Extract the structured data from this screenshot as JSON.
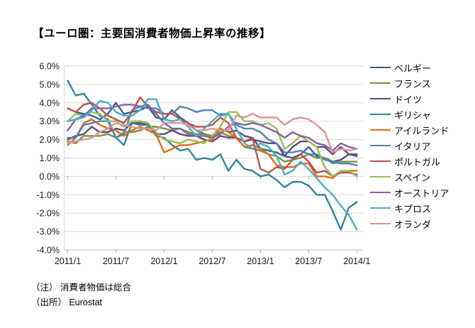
{
  "title": "【ユーロ圏：主要国消費者物価上昇率の推移】",
  "notes": [
    "（注） 消費者物価は総合",
    "（出所） Eurostat"
  ],
  "chart_data": {
    "type": "line",
    "title": "【ユーロ圏：主要国消費者物価上昇率の推移】",
    "xlabel": "",
    "ylabel": "",
    "ylim": [
      -4,
      6
    ],
    "grid": "horizontal",
    "legend_position": "right",
    "categories": [
      "2011/1",
      "2011/2",
      "2011/3",
      "2011/4",
      "2011/5",
      "2011/6",
      "2011/7",
      "2011/8",
      "2011/9",
      "2011/10",
      "2011/11",
      "2011/12",
      "2012/1",
      "2012/2",
      "2012/3",
      "2012/4",
      "2012/5",
      "2012/6",
      "2012/7",
      "2012/8",
      "2012/9",
      "2012/10",
      "2012/11",
      "2012/12",
      "2013/1",
      "2013/2",
      "2013/3",
      "2013/4",
      "2013/5",
      "2013/6",
      "2013/7",
      "2013/8",
      "2013/9",
      "2013/10",
      "2013/11",
      "2013/12",
      "2014/1"
    ],
    "x_tick_labels": [
      "2011/1",
      "2011/7",
      "2012/1",
      "2012/7",
      "2013/1",
      "2013/7",
      "2014/1"
    ],
    "x_tick_months": [
      0,
      6,
      12,
      18,
      24,
      30,
      36
    ],
    "y_ticks": [
      {
        "value": 6,
        "label": "6.0%"
      },
      {
        "value": 5,
        "label": "5.0%"
      },
      {
        "value": 4,
        "label": "4.0%"
      },
      {
        "value": 3,
        "label": "3.0%"
      },
      {
        "value": 2,
        "label": "2.0%"
      },
      {
        "value": 1,
        "label": "1.0%"
      },
      {
        "value": 0,
        "label": "0.0%"
      },
      {
        "value": -1,
        "label": "-1.0%"
      },
      {
        "value": -2,
        "label": "-2.0%"
      },
      {
        "value": -3,
        "label": "-3.0%"
      },
      {
        "value": -4,
        "label": "-4.0%"
      }
    ],
    "colors": {
      "grid": "#D9D9D9",
      "axis": "#BFBFBF",
      "tick": "#A6A6A6",
      "label": "#1a1a1a"
    },
    "series": [
      {
        "key": "belgium",
        "name": "ベルギー",
        "color": "#365F91",
        "values": [
          3.7,
          3.5,
          3.4,
          3.3,
          3.1,
          3.4,
          4.0,
          3.4,
          3.5,
          3.6,
          3.8,
          3.2,
          3.1,
          3.6,
          3.2,
          2.9,
          2.5,
          2.3,
          2.2,
          2.6,
          2.4,
          2.5,
          2.2,
          2.1,
          1.5,
          1.4,
          1.3,
          1.1,
          1.0,
          1.2,
          1.6,
          1.1,
          1.0,
          0.8,
          0.9,
          1.2,
          1.1
        ]
      },
      {
        "key": "france",
        "name": "フランス",
        "color": "#77933C",
        "values": [
          1.9,
          1.8,
          2.2,
          2.2,
          2.2,
          2.3,
          2.1,
          2.4,
          2.4,
          2.5,
          2.7,
          2.7,
          2.6,
          2.5,
          2.6,
          2.4,
          2.3,
          2.3,
          2.2,
          2.4,
          2.2,
          2.1,
          1.6,
          1.5,
          1.4,
          1.2,
          1.1,
          0.8,
          0.9,
          1.0,
          1.2,
          1.0,
          1.0,
          0.7,
          0.8,
          0.8,
          0.8
        ]
      },
      {
        "key": "germany",
        "name": "ドイツ",
        "color": "#604A7B",
        "values": [
          2.0,
          2.2,
          2.3,
          2.7,
          2.4,
          2.4,
          2.6,
          2.5,
          2.9,
          2.9,
          2.8,
          2.3,
          2.3,
          2.5,
          2.3,
          2.2,
          2.2,
          2.0,
          1.9,
          2.2,
          2.1,
          2.1,
          1.9,
          2.0,
          1.9,
          1.8,
          1.8,
          1.1,
          1.6,
          1.9,
          1.9,
          1.6,
          1.6,
          1.2,
          1.6,
          1.2,
          1.2
        ]
      },
      {
        "key": "greece",
        "name": "ギリシャ",
        "color": "#31859C",
        "values": [
          5.2,
          4.4,
          4.5,
          3.9,
          3.3,
          3.1,
          2.1,
          1.7,
          2.9,
          2.8,
          2.8,
          2.2,
          2.1,
          1.7,
          1.4,
          1.5,
          0.9,
          1.0,
          0.9,
          1.2,
          0.3,
          0.9,
          0.4,
          0.3,
          0.0,
          0.1,
          -0.2,
          -0.6,
          -0.3,
          -0.3,
          -0.5,
          -1.0,
          -1.0,
          -1.9,
          -2.9,
          -1.7,
          -1.4
        ]
      },
      {
        "key": "ireland",
        "name": "アイルランド",
        "color": "#E36C09",
        "values": [
          1.7,
          2.1,
          2.9,
          3.1,
          2.8,
          2.6,
          2.5,
          2.2,
          2.5,
          2.7,
          2.5,
          2.3,
          1.3,
          1.5,
          1.7,
          1.7,
          1.8,
          1.9,
          2.0,
          2.6,
          2.4,
          2.1,
          1.6,
          1.7,
          1.5,
          1.2,
          0.6,
          0.5,
          0.5,
          0.7,
          0.7,
          0.0,
          0.0,
          -0.1,
          0.3,
          0.3,
          0.3
        ]
      },
      {
        "key": "italy",
        "name": "イタリア",
        "color": "#4F81BD",
        "values": [
          2.1,
          2.1,
          2.8,
          2.9,
          3.0,
          3.0,
          2.1,
          2.3,
          3.6,
          3.8,
          3.7,
          3.7,
          3.4,
          3.4,
          3.8,
          3.7,
          3.5,
          3.6,
          3.6,
          3.3,
          3.4,
          2.8,
          2.6,
          2.6,
          2.4,
          2.0,
          1.8,
          1.3,
          1.3,
          1.4,
          1.2,
          1.2,
          0.9,
          0.8,
          0.7,
          0.7,
          0.6
        ]
      },
      {
        "key": "portugal",
        "name": "ポルトガル",
        "color": "#C0504D",
        "values": [
          3.7,
          3.5,
          3.9,
          4.0,
          3.7,
          3.3,
          3.1,
          2.9,
          3.5,
          4.3,
          3.8,
          3.5,
          3.4,
          3.4,
          3.1,
          2.9,
          2.7,
          2.7,
          2.8,
          3.2,
          2.9,
          2.1,
          1.9,
          2.1,
          0.4,
          0.2,
          0.5,
          0.4,
          0.9,
          1.2,
          0.8,
          0.2,
          0.3,
          0.0,
          0.2,
          0.2,
          0.1
        ]
      },
      {
        "key": "spain",
        "name": "スペイン",
        "color": "#9BBB59",
        "values": [
          3.0,
          3.4,
          3.3,
          3.5,
          3.4,
          3.0,
          3.0,
          2.7,
          3.0,
          3.0,
          2.9,
          2.4,
          2.0,
          1.9,
          1.8,
          2.0,
          1.9,
          1.8,
          2.2,
          2.7,
          3.5,
          3.5,
          3.0,
          3.0,
          2.8,
          2.9,
          2.6,
          1.5,
          1.8,
          2.2,
          1.9,
          1.6,
          0.5,
          0.0,
          0.3,
          0.3,
          0.0
        ]
      },
      {
        "key": "austria",
        "name": "オーストリア",
        "color": "#8064A2",
        "values": [
          2.5,
          3.1,
          3.3,
          3.7,
          3.7,
          3.7,
          3.8,
          3.9,
          3.9,
          3.8,
          3.9,
          3.4,
          2.9,
          2.6,
          2.6,
          2.3,
          2.2,
          2.2,
          2.1,
          2.3,
          2.7,
          2.9,
          2.8,
          2.9,
          2.8,
          2.6,
          2.4,
          2.1,
          2.4,
          2.2,
          2.1,
          1.8,
          1.7,
          1.4,
          1.8,
          1.6,
          1.5
        ]
      },
      {
        "key": "cyprus",
        "name": "キプロス",
        "color": "#4BACC6",
        "values": [
          3.0,
          3.1,
          3.2,
          3.6,
          4.1,
          4.0,
          3.5,
          3.3,
          3.3,
          3.6,
          4.2,
          4.2,
          3.1,
          3.0,
          3.1,
          2.7,
          2.2,
          2.6,
          3.0,
          3.4,
          3.4,
          2.6,
          1.8,
          1.5,
          1.8,
          1.6,
          1.1,
          0.1,
          0.3,
          0.8,
          0.4,
          -0.1,
          -0.6,
          -1.0,
          -1.6,
          -2.1,
          -2.9
        ]
      },
      {
        "key": "netherlands",
        "name": "オランダ",
        "color": "#D99694",
        "values": [
          1.8,
          1.9,
          2.0,
          2.1,
          2.4,
          2.6,
          2.9,
          2.8,
          2.7,
          2.6,
          2.6,
          2.5,
          2.9,
          2.9,
          2.9,
          2.8,
          2.5,
          2.5,
          2.6,
          2.5,
          2.5,
          3.3,
          3.2,
          3.4,
          3.2,
          3.2,
          3.2,
          2.8,
          3.1,
          3.2,
          3.1,
          2.8,
          2.4,
          1.3,
          1.5,
          1.4,
          1.5
        ]
      }
    ]
  }
}
